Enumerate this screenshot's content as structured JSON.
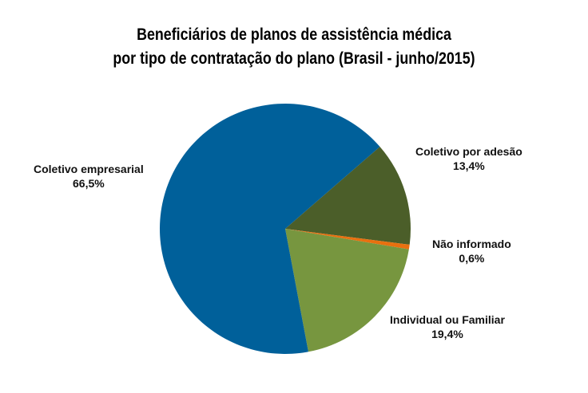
{
  "chart_data": {
    "type": "pie",
    "title": [
      "Beneficiários de planos de assistência médica",
      "por tipo de contratação do plano (Brasil - junho/2015)"
    ],
    "slices": [
      {
        "label": "Coletivo por adesão",
        "value": 13.4,
        "display": "13,4%",
        "color": "#4b5e29"
      },
      {
        "label": "Não informado",
        "value": 0.6,
        "display": "0,6%",
        "color": "#e8700f"
      },
      {
        "label": "Individual ou Familiar",
        "value": 19.4,
        "display": "19,4%",
        "color": "#77963f"
      },
      {
        "label": "Coletivo empresarial",
        "value": 66.5,
        "display": "66,5%",
        "color": "#00609a"
      }
    ],
    "start_angle_deg": 49,
    "direction": "clockwise",
    "legend": "none (direct labels)"
  }
}
